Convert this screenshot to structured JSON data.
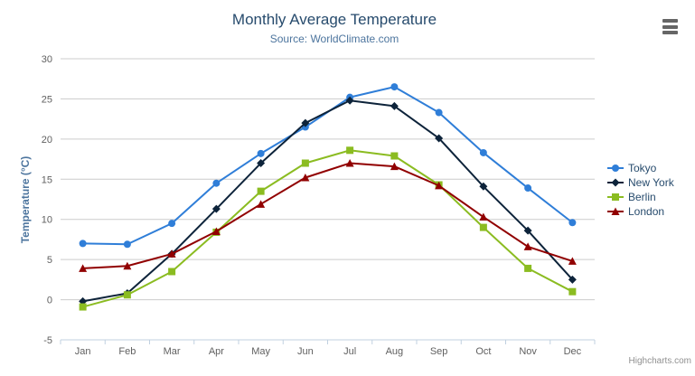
{
  "chart_data": {
    "type": "line",
    "title": "Monthly Average Temperature",
    "subtitle": "Source: WorldClimate.com",
    "xlabel": "",
    "ylabel": "Temperature (°C)",
    "categories": [
      "Jan",
      "Feb",
      "Mar",
      "Apr",
      "May",
      "Jun",
      "Jul",
      "Aug",
      "Sep",
      "Oct",
      "Nov",
      "Dec"
    ],
    "series": [
      {
        "name": "Tokyo",
        "color": "#2f7ed8",
        "marker": "circle",
        "values": [
          7.0,
          6.9,
          9.5,
          14.5,
          18.2,
          21.5,
          25.2,
          26.5,
          23.3,
          18.3,
          13.9,
          9.6
        ]
      },
      {
        "name": "New York",
        "color": "#0d233a",
        "marker": "diamond",
        "values": [
          -0.2,
          0.8,
          5.7,
          11.3,
          17.0,
          22.0,
          24.8,
          24.1,
          20.1,
          14.1,
          8.6,
          2.5
        ]
      },
      {
        "name": "Berlin",
        "color": "#8bbc21",
        "marker": "square",
        "values": [
          -0.9,
          0.6,
          3.5,
          8.4,
          13.5,
          17.0,
          18.6,
          17.9,
          14.3,
          9.0,
          3.9,
          1.0
        ]
      },
      {
        "name": "London",
        "color": "#910000",
        "marker": "triangle",
        "values": [
          3.9,
          4.2,
          5.7,
          8.5,
          11.9,
          15.2,
          17.0,
          16.6,
          14.2,
          10.3,
          6.6,
          4.8
        ]
      }
    ],
    "ylim": [
      -5,
      30
    ],
    "yticks": [
      -5,
      0,
      5,
      10,
      15,
      20,
      25,
      30
    ],
    "grid": true,
    "legend_position": "right"
  },
  "colors": {
    "title": "#274b6d",
    "subtitle": "#4d759e",
    "axis_title": "#4d759e",
    "axis_label": "#606060",
    "grid_line": "#cccccc",
    "axis_line": "#c0d0e0",
    "legend_text": "#274b6d",
    "credits": "#909090",
    "menu_icon": "#666666",
    "background": "#ffffff"
  },
  "menu": {
    "tooltip": "Chart context menu"
  },
  "credits": {
    "label": "Highcharts.com"
  }
}
